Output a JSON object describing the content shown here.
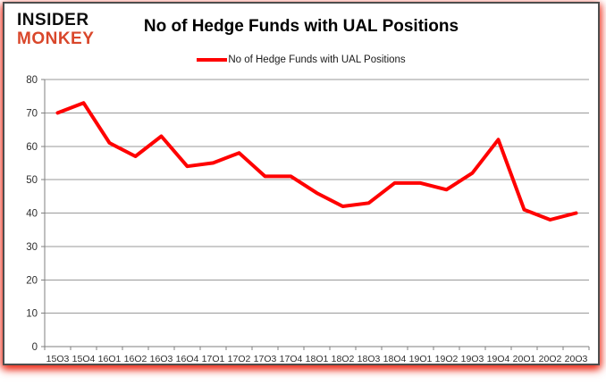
{
  "logo": {
    "line1": "INSIDER",
    "line2": "MONKEY"
  },
  "header": {
    "title": "No of Hedge Funds with UAL Positions"
  },
  "legend": {
    "label": "No of Hedge Funds with UAL Positions"
  },
  "colors": {
    "line": "#ff0000",
    "logo_red": "#d9472b",
    "grid": "#9a9a9a",
    "axis": "#7f7f7f",
    "tick_text": "#2e2e2e",
    "border": "#4e4e4e",
    "glow": "#ff0000"
  },
  "chart_data": {
    "type": "line",
    "title": "No of Hedge Funds with UAL Positions",
    "categories": [
      "15Q3",
      "15Q4",
      "16Q1",
      "16Q2",
      "16Q3",
      "16Q4",
      "17Q1",
      "17Q2",
      "17Q3",
      "17Q4",
      "18Q1",
      "18Q2",
      "18Q3",
      "18Q4",
      "19Q1",
      "19Q2",
      "19Q3",
      "19Q4",
      "20Q1",
      "20Q2",
      "20Q3"
    ],
    "series": [
      {
        "name": "No of Hedge Funds with UAL Positions",
        "values": [
          70,
          73,
          61,
          57,
          63,
          54,
          55,
          58,
          51,
          51,
          46,
          42,
          43,
          49,
          49,
          47,
          52,
          62,
          41,
          38,
          40
        ]
      }
    ],
    "xlabel": "",
    "ylabel": "",
    "ylim": [
      0,
      80
    ],
    "ytick_step": 10,
    "grid": "horizontal",
    "legend_position": "top-center"
  }
}
